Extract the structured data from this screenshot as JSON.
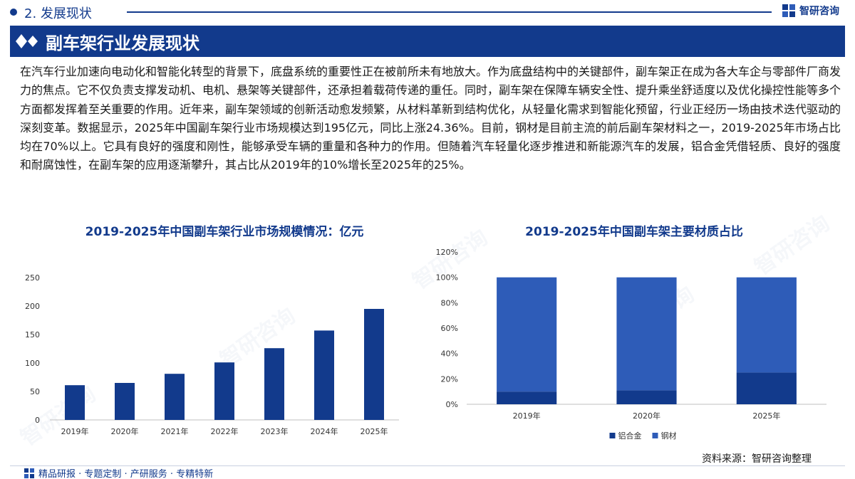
{
  "header": {
    "section": "2. 发展现状",
    "logo_text": "智研咨询"
  },
  "title": "副车架行业发展现状",
  "body_text": "在汽车行业加速向电动化和智能化转型的背景下，底盘系统的重要性正在被前所未有地放大。作为底盘结构中的关键部件，副车架正在成为各大车企与零部件厂商发力的焦点。它不仅负责支撑发动机、电机、悬架等关键部件，还承担着载荷传递的重任。同时，副车架在保障车辆安全性、提升乘坐舒适度以及优化操控性能等多个方面都发挥着至关重要的作用。近年来，副车架领域的创新活动愈发频繁，从材料革新到结构优化，从轻量化需求到智能化预留，行业正经历一场由技术迭代驱动的深刻变革。数据显示，2025年中国副车架行业市场规模达到195亿元，同比上涨24.36%。目前，钢材是目前主流的前后副车架材料之一，2019-2025年市场占比均在70%以上。它具有良好的强度和刚性，能够承受车辆的重量和各种力的作用。但随着汽车轻量化逐步推进和新能源汽车的发展，铝合金凭借轻质、良好的强度和耐腐蚀性，在副车架的应用逐渐攀升，其占比从2019年的10%增长至2025年的25%。",
  "chart_data": [
    {
      "type": "bar",
      "title": "2019-2025年中国副车架行业市场规模情况：亿元",
      "categories": [
        "2019年",
        "2020年",
        "2021年",
        "2022年",
        "2023年",
        "2024年",
        "2025年"
      ],
      "values": [
        61,
        65,
        81,
        101,
        126,
        157,
        195
      ],
      "ylim": [
        0,
        250
      ],
      "yticks": [
        "0",
        "50",
        "100",
        "150",
        "200",
        "250"
      ],
      "grid": false,
      "colors": {
        "bar": "#123a8c"
      }
    },
    {
      "type": "bar",
      "stacked": true,
      "title": "2019-2025年中国副车架主要材质占比",
      "categories": [
        "2019年",
        "2020年",
        "2025年"
      ],
      "series": [
        {
          "name": "铝合金",
          "values": [
            10,
            11,
            25
          ],
          "color": "#123a8c"
        },
        {
          "name": "钢材",
          "values": [
            90,
            89,
            75
          ],
          "color": "#2e5cb8"
        }
      ],
      "ylim": [
        0,
        120
      ],
      "yticks": [
        "0%",
        "20%",
        "40%",
        "60%",
        "80%",
        "100%",
        "120%"
      ],
      "grid": false,
      "legend": "bottom"
    }
  ],
  "footer": {
    "source": "资料来源：智研咨询整理",
    "tagline": "精品研报 · 专题定制 · 产研服务 · 专精特新"
  },
  "watermark_text": "智研咨询"
}
